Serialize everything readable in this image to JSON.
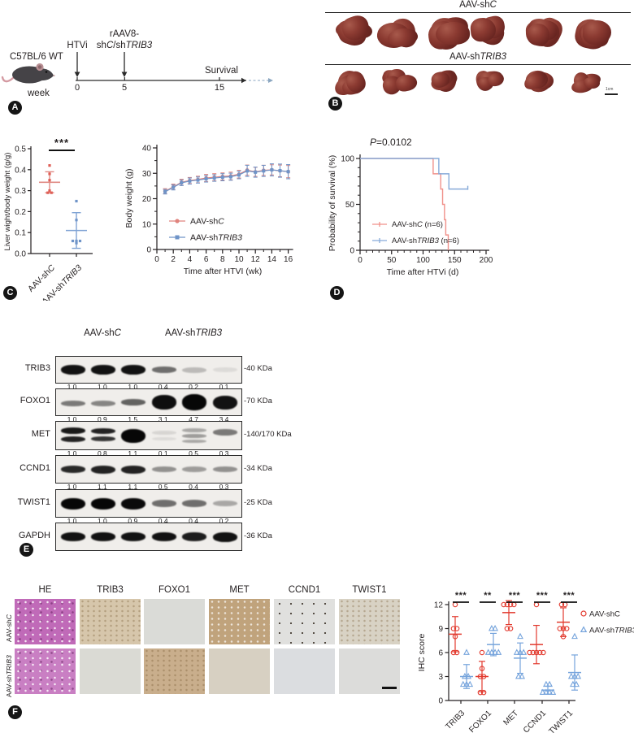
{
  "colors": {
    "shc_salmon": "#e0837d",
    "sht_blue": "#6f94c8",
    "liver_red_pt": "#df5f56",
    "liver_red_line": "#e08a84",
    "liver_blue_pt": "#6f94c8",
    "liver_blue_line": "#7fa3d4",
    "survival_red": "#f0918a",
    "survival_blue": "#87abd9",
    "ihc_red": "#e23a2e",
    "ihc_blue": "#76a4dc",
    "axis": "#231f20",
    "band_black": "#070707"
  },
  "panel_a": {
    "label": "A",
    "strain": "C57BL/6 WT",
    "week": "week",
    "htvi": "HTVi",
    "raav1": [
      {
        "t": "rAAV8-"
      }
    ],
    "raav2": [
      {
        "t": "sh"
      },
      {
        "t": "C",
        "i": 1
      },
      {
        "t": "/sh"
      },
      {
        "t": "TRIB3",
        "i": 1
      }
    ],
    "survival": "Survival",
    "ticks": [
      {
        "label": "0",
        "week": 0
      },
      {
        "label": "5",
        "week": 5
      },
      {
        "label": "15",
        "week": 15
      }
    ]
  },
  "panel_b": {
    "label": "B",
    "group1": [
      {
        "t": "AAV-sh"
      },
      {
        "t": "C",
        "i": 1
      }
    ],
    "group2": [
      {
        "t": "AAV-sh"
      },
      {
        "t": "TRIB3",
        "i": 1
      }
    ],
    "scale_bar": "1cm",
    "tumors_per_row": 6
  },
  "panel_c": {
    "label": "C"
  },
  "panel_d": {
    "label": "D",
    "p_value": [
      {
        "t": "P",
        "i": 1
      },
      {
        "t": "=0.0102"
      }
    ]
  },
  "panel_e": {
    "label": "E",
    "header1": [
      {
        "t": "AAV-sh"
      },
      {
        "t": "C",
        "i": 1
      }
    ],
    "header2": [
      {
        "t": "AAV-sh"
      },
      {
        "t": "TRIB3",
        "i": 1
      }
    ],
    "rows": [
      {
        "protein": "TRIB3",
        "kda": "-40 KDa",
        "ratios": [
          "1.0",
          "1.0",
          "1.0",
          "0.4",
          "0.2",
          "0.1"
        ],
        "lanes": [
          [
            [
              0.95,
              12,
              0
            ]
          ],
          [
            [
              0.95,
              12,
              0
            ]
          ],
          [
            [
              0.95,
              12,
              0
            ]
          ],
          [
            [
              0.55,
              8,
              0
            ]
          ],
          [
            [
              0.22,
              7,
              0
            ]
          ],
          [
            [
              0.08,
              6,
              0
            ]
          ]
        ]
      },
      {
        "protein": "FOXO1",
        "kda": "-70 KDa",
        "ratios": [
          "1.0",
          "0.9",
          "1.5",
          "3.1",
          "4.7",
          "3.4"
        ],
        "lanes": [
          [
            [
              0.5,
              7,
              1
            ]
          ],
          [
            [
              0.45,
              7,
              1
            ]
          ],
          [
            [
              0.6,
              8,
              0
            ]
          ],
          [
            [
              0.97,
              18,
              0
            ]
          ],
          [
            [
              1,
              20,
              0
            ]
          ],
          [
            [
              0.95,
              17,
              0
            ]
          ]
        ]
      },
      {
        "protein": "MET",
        "kda": "-140/170 KDa",
        "ratios": [
          "1.0",
          "0.8",
          "1.1",
          "0.1",
          "0.5",
          "0.3"
        ],
        "lanes": [
          [
            [
              0.92,
              8,
              -6
            ],
            [
              0.88,
              7,
              4
            ]
          ],
          [
            [
              0.88,
              7,
              -6
            ],
            [
              0.8,
              6,
              4
            ]
          ],
          [
            [
              1,
              17,
              0
            ]
          ],
          [
            [
              0.1,
              5,
              -4
            ],
            [
              0.08,
              4,
              4
            ]
          ],
          [
            [
              0.3,
              5,
              -7
            ],
            [
              0.35,
              5,
              0
            ],
            [
              0.3,
              4,
              7
            ]
          ],
          [
            [
              0.5,
              8,
              -4
            ]
          ]
        ]
      },
      {
        "protein": "CCND1",
        "kda": "-34 KDa",
        "ratios": [
          "1.0",
          "1.1",
          "1.1",
          "0.5",
          "0.4",
          "0.3"
        ],
        "lanes": [
          [
            [
              0.85,
              9,
              0
            ]
          ],
          [
            [
              0.88,
              10,
              0
            ]
          ],
          [
            [
              0.88,
              10,
              0
            ]
          ],
          [
            [
              0.4,
              7,
              0
            ]
          ],
          [
            [
              0.35,
              7,
              0
            ]
          ],
          [
            [
              0.4,
              7,
              0
            ]
          ]
        ]
      },
      {
        "protein": "TWIST1",
        "kda": "-25 KDa",
        "ratios": [
          "1.0",
          "1.0",
          "0.9",
          "0.4",
          "0.4",
          "0.2"
        ],
        "lanes": [
          [
            [
              1,
              14,
              0
            ]
          ],
          [
            [
              1,
              14,
              0
            ]
          ],
          [
            [
              0.98,
              14,
              0
            ]
          ],
          [
            [
              0.55,
              9,
              0
            ]
          ],
          [
            [
              0.55,
              9,
              0
            ]
          ],
          [
            [
              0.3,
              7,
              0
            ]
          ]
        ]
      },
      {
        "protein": "GAPDH",
        "kda": "-36 KDa",
        "ratios": null,
        "lanes": [
          [
            [
              0.95,
              11,
              0
            ]
          ],
          [
            [
              0.95,
              11,
              0
            ]
          ],
          [
            [
              0.95,
              11,
              0
            ]
          ],
          [
            [
              0.95,
              11,
              0
            ]
          ],
          [
            [
              0.9,
              11,
              0
            ]
          ],
          [
            [
              0.95,
              12,
              0
            ]
          ]
        ]
      }
    ]
  },
  "panel_f": {
    "label": "F",
    "columns": [
      "HE",
      "TRIB3",
      "FOXO1",
      "MET",
      "CCND1",
      "TWIST1"
    ],
    "row_labels": [
      [
        {
          "t": "AAV-sh"
        },
        {
          "t": "C",
          "i": 1
        }
      ],
      [
        {
          "t": "AAV-sh"
        },
        {
          "t": "TRIB3",
          "i": 1
        }
      ]
    ],
    "tiles": [
      [
        {
          "color": "#c06ab8",
          "texture": "he"
        },
        {
          "color": "#d6c6ab",
          "texture": "grain"
        },
        {
          "color": "#dadbd7",
          "texture": "plain"
        },
        {
          "color": "#c0a37c",
          "texture": "light"
        },
        {
          "color": "#e0e0de",
          "texture": "specks"
        },
        {
          "color": "#d8d2c4",
          "texture": "grain"
        }
      ],
      [
        {
          "color": "#c97fc3",
          "texture": "he"
        },
        {
          "color": "#dadad4",
          "texture": "plain"
        },
        {
          "color": "#c9ae8c",
          "texture": "grain"
        },
        {
          "color": "#d7d0c2",
          "texture": "plain"
        },
        {
          "color": "#dbdde0",
          "texture": "plain"
        },
        {
          "color": "#dcdcda",
          "texture": "plain"
        }
      ]
    ]
  },
  "chart_data": [
    {
      "id": "liver_ratio",
      "type": "scatter",
      "title": "",
      "ylabel": "Liver wight/body weight (g/g)",
      "ylim": [
        0,
        0.5
      ],
      "yticks": [
        0.0,
        0.1,
        0.2,
        0.3,
        0.4,
        0.5
      ],
      "categories": [
        "AAV-shC",
        "AAV-shTRIB3"
      ],
      "category_segs": [
        [
          {
            "t": "AAV-sh"
          },
          {
            "t": "C",
            "i": 1
          }
        ],
        [
          {
            "t": "AAV-sh"
          },
          {
            "t": "TRIB3",
            "i": 1
          }
        ]
      ],
      "series": [
        {
          "name": "AAV-shC",
          "values": [
            0.42,
            0.38,
            0.35,
            0.3,
            0.29,
            0.29
          ],
          "mean": 0.34,
          "sd": 0.05
        },
        {
          "name": "AAV-shTRIB3",
          "values": [
            0.25,
            0.16,
            0.06,
            0.06,
            0.06,
            0.05
          ],
          "mean": 0.11,
          "sd": 0.085
        }
      ],
      "significance": "***",
      "grid": false
    },
    {
      "id": "body_weight",
      "type": "line",
      "title": "",
      "ylabel": "Body weight (g)",
      "xlabel": "Time after HTVI (wk)",
      "ylim": [
        0,
        40
      ],
      "xlim": [
        0,
        16
      ],
      "yticks": [
        0,
        10,
        20,
        30,
        40
      ],
      "xticks": [
        0,
        2,
        4,
        6,
        8,
        10,
        12,
        14,
        16
      ],
      "x": [
        1,
        2,
        3,
        4,
        5,
        6,
        7,
        8,
        9,
        10,
        11,
        12,
        13,
        14,
        15,
        16
      ],
      "series": [
        {
          "name": "AAV-shC",
          "label_segs": [
            {
              "t": "AAV-sh"
            },
            {
              "t": "C",
              "i": 1
            }
          ],
          "marker": "circle",
          "values": [
            22.7,
            24.4,
            26.2,
            26.9,
            27.3,
            27.9,
            28.2,
            28.5,
            28.7,
            29.4,
            31.0,
            30.3,
            30.9,
            31.1,
            30.7,
            30.4
          ],
          "err": [
            1.0,
            1.1,
            1.2,
            1.2,
            1.3,
            1.4,
            1.4,
            1.4,
            1.5,
            1.5,
            2.0,
            1.8,
            2.0,
            2.0,
            2.3,
            2.4
          ]
        },
        {
          "name": "AAV-shTRIB3",
          "label_segs": [
            {
              "t": "AAV-sh"
            },
            {
              "t": "TRIB3",
              "i": 1
            }
          ],
          "marker": "square",
          "values": [
            23.0,
            24.7,
            26.5,
            27.2,
            27.6,
            28.1,
            28.4,
            28.7,
            28.9,
            29.6,
            31.2,
            30.7,
            31.2,
            31.6,
            31.3,
            30.9
          ],
          "err": [
            0.9,
            1.0,
            1.1,
            1.2,
            1.2,
            1.3,
            1.3,
            1.4,
            1.4,
            1.5,
            2.2,
            2.0,
            2.2,
            2.4,
            2.6,
            2.8
          ]
        }
      ],
      "legend_position": "lower right",
      "grid": false
    },
    {
      "id": "survival",
      "type": "line",
      "subtype": "step",
      "title": "",
      "p_value": "P=0.0102",
      "ylabel": "Probability of survival (%)",
      "xlabel": "Time after HTVi (d)",
      "ylim": [
        0,
        100
      ],
      "xlim": [
        0,
        200
      ],
      "yticks": [
        0,
        50,
        100
      ],
      "xticks": [
        0,
        50,
        100,
        150,
        200
      ],
      "series": [
        {
          "name": "AAV-shC (n=6)",
          "label_segs": [
            {
              "t": "AAV-sh"
            },
            {
              "t": "C",
              "i": 1
            },
            {
              "t": " (n=6)"
            }
          ],
          "points": [
            [
              0,
              100
            ],
            [
              116,
              100
            ],
            [
              116,
              83.3
            ],
            [
              128,
              83.3
            ],
            [
              128,
              66.7
            ],
            [
              131,
              66.7
            ],
            [
              131,
              50
            ],
            [
              134,
              50
            ],
            [
              134,
              33.3
            ],
            [
              136,
              33.3
            ],
            [
              136,
              16.7
            ],
            [
              140,
              16.7
            ],
            [
              140,
              0
            ]
          ],
          "censor": []
        },
        {
          "name": "AAV-shTRIB3 (n=6)",
          "label_segs": [
            {
              "t": "AAV-sh"
            },
            {
              "t": "TRIB3",
              "i": 1
            },
            {
              "t": " (n=6)"
            }
          ],
          "points": [
            [
              0,
              100
            ],
            [
              125,
              100
            ],
            [
              125,
              83.3
            ],
            [
              141,
              83.3
            ],
            [
              141,
              66.7
            ],
            [
              171,
              66.7
            ]
          ],
          "censor": [
            171
          ]
        }
      ],
      "grid": false
    },
    {
      "id": "ihc_score",
      "type": "scatter",
      "title": "",
      "ylabel": "IHC score",
      "ylim": [
        0,
        12
      ],
      "yticks": [
        0,
        3,
        6,
        9,
        12
      ],
      "categories": [
        "TRIB3",
        "FOXO1",
        "MET",
        "CCND1",
        "TWIST1"
      ],
      "series": [
        {
          "name": "AAV-shC",
          "label_segs": [
            {
              "t": "AAV-shC"
            }
          ],
          "marker": "circle",
          "values": [
            [
              12,
              9,
              9,
              8,
              6,
              6
            ],
            [
              6,
              4,
              3,
              3,
              1,
              1
            ],
            [
              12,
              12,
              12,
              12,
              9,
              9
            ],
            [
              12,
              6,
              6,
              6,
              6,
              6
            ],
            [
              12,
              12,
              9,
              9,
              9,
              8
            ]
          ],
          "means": [
            8.3,
            3.0,
            11.0,
            7.0,
            9.8
          ],
          "sds": [
            2.2,
            1.9,
            1.5,
            2.4,
            1.8
          ]
        },
        {
          "name": "AAV-shTRIB3",
          "label_segs": [
            {
              "t": "AAV-sh"
            },
            {
              "t": "TRIB3",
              "i": 1
            }
          ],
          "marker": "triangle",
          "values": [
            [
              6,
              3,
              3,
              2,
              2,
              2
            ],
            [
              9,
              9,
              6,
              6,
              6,
              6
            ],
            [
              8,
              6,
              6,
              6,
              3,
              3
            ],
            [
              2,
              2,
              1,
              1,
              1,
              1
            ],
            [
              8,
              3,
              3,
              3,
              2,
              2
            ]
          ],
          "means": [
            3.0,
            7.0,
            5.3,
            1.3,
            3.5
          ],
          "sds": [
            1.5,
            1.4,
            1.9,
            0.5,
            2.2
          ]
        }
      ],
      "significance": [
        "***",
        "**",
        "***",
        "***",
        "***"
      ],
      "grid": false
    }
  ]
}
